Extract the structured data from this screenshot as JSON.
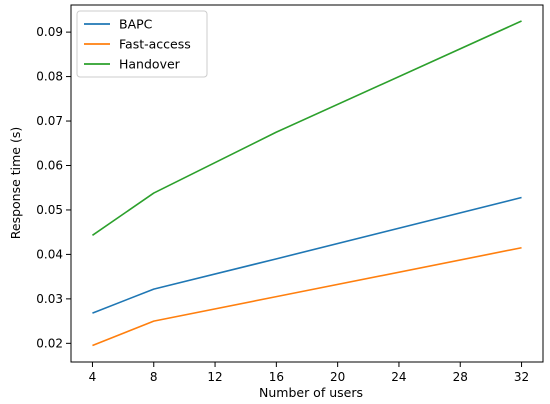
{
  "chart_data": {
    "type": "line",
    "title": "",
    "xlabel": "Number of users",
    "ylabel": "Response time (s)",
    "x": [
      4,
      8,
      16,
      32
    ],
    "xticks": [
      4,
      8,
      12,
      16,
      20,
      24,
      28,
      32
    ],
    "xtick_labels": [
      "4",
      "8",
      "12",
      "16",
      "20",
      "24",
      "28",
      "32"
    ],
    "xlim": [
      2.6,
      33.4
    ],
    "yticks": [
      0.02,
      0.03,
      0.04,
      0.05,
      0.06,
      0.07,
      0.08,
      0.09
    ],
    "ytick_labels": [
      "0.02",
      "0.03",
      "0.04",
      "0.05",
      "0.06",
      "0.07",
      "0.08",
      "0.09"
    ],
    "ylim": [
      0.0158,
      0.0961
    ],
    "grid": false,
    "legend_position": "top-left",
    "series": [
      {
        "name": "BAPC",
        "color": "#1f77b4",
        "values": [
          0.0268,
          0.0322,
          0.039,
          0.0528
        ]
      },
      {
        "name": "Fast-access",
        "color": "#ff7f0e",
        "values": [
          0.0195,
          0.025,
          0.0305,
          0.0415
        ]
      },
      {
        "name": "Handover",
        "color": "#2ca02c",
        "values": [
          0.0443,
          0.0538,
          0.0675,
          0.0925
        ]
      }
    ]
  }
}
